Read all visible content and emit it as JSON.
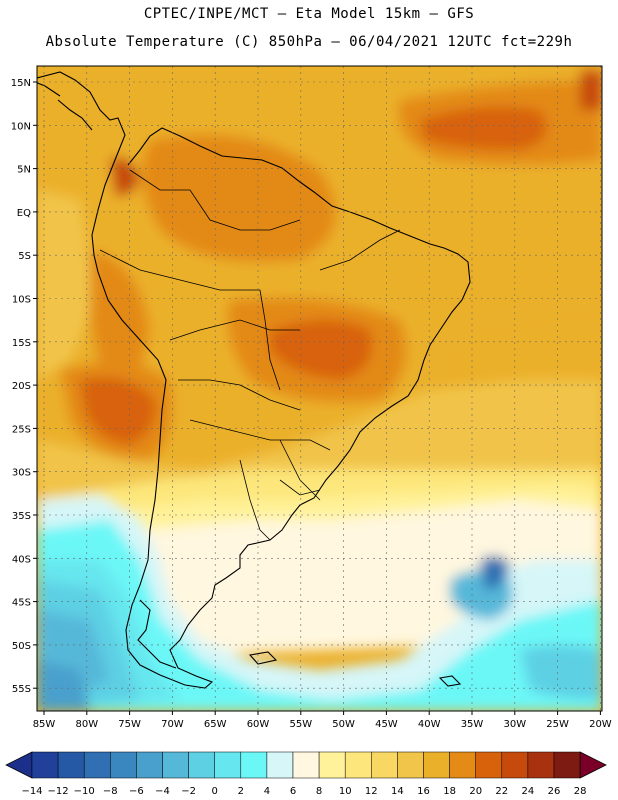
{
  "header": {
    "line1": "CPTEC/INPE/MCT –  Eta Model 15km – GFS",
    "line2": "Absolute Temperature (C) 850hPa – 06/04/2021 12UTC fct=229h"
  },
  "map": {
    "lon_range": [
      -86,
      -20
    ],
    "lat_range": [
      -58,
      17
    ],
    "x_ticks": [
      "85W",
      "80W",
      "75W",
      "70W",
      "65W",
      "60W",
      "55W",
      "50W",
      "45W",
      "40W",
      "35W",
      "30W",
      "25W",
      "20W"
    ],
    "y_ticks": [
      "15N",
      "10N",
      "5N",
      "EQ",
      "5S",
      "10S",
      "15S",
      "20S",
      "25S",
      "30S",
      "35S",
      "40S",
      "45S",
      "50S",
      "55S"
    ]
  },
  "colorbar": {
    "labels": [
      "-14",
      "-12",
      "-10",
      "-8",
      "-6",
      "-4",
      "-2",
      "0",
      "2",
      "4",
      "6",
      "8",
      "10",
      "12",
      "14",
      "16",
      "18",
      "20",
      "22",
      "24",
      "26",
      "28"
    ],
    "colors": [
      "#1c2f8a",
      "#21409a",
      "#2559a6",
      "#2f6fb2",
      "#3a86bf",
      "#4aa0cc",
      "#56b8d9",
      "#5dd0e4",
      "#66e6ee",
      "#6cf7f7",
      "#d6f6f8",
      "#fff7df",
      "#fff29a",
      "#fde77c",
      "#f8d862",
      "#f1c44a",
      "#ebb02a",
      "#e38a17",
      "#d8620c",
      "#c64a0c",
      "#a8320f",
      "#7d1b12",
      "#7a0028"
    ]
  }
}
